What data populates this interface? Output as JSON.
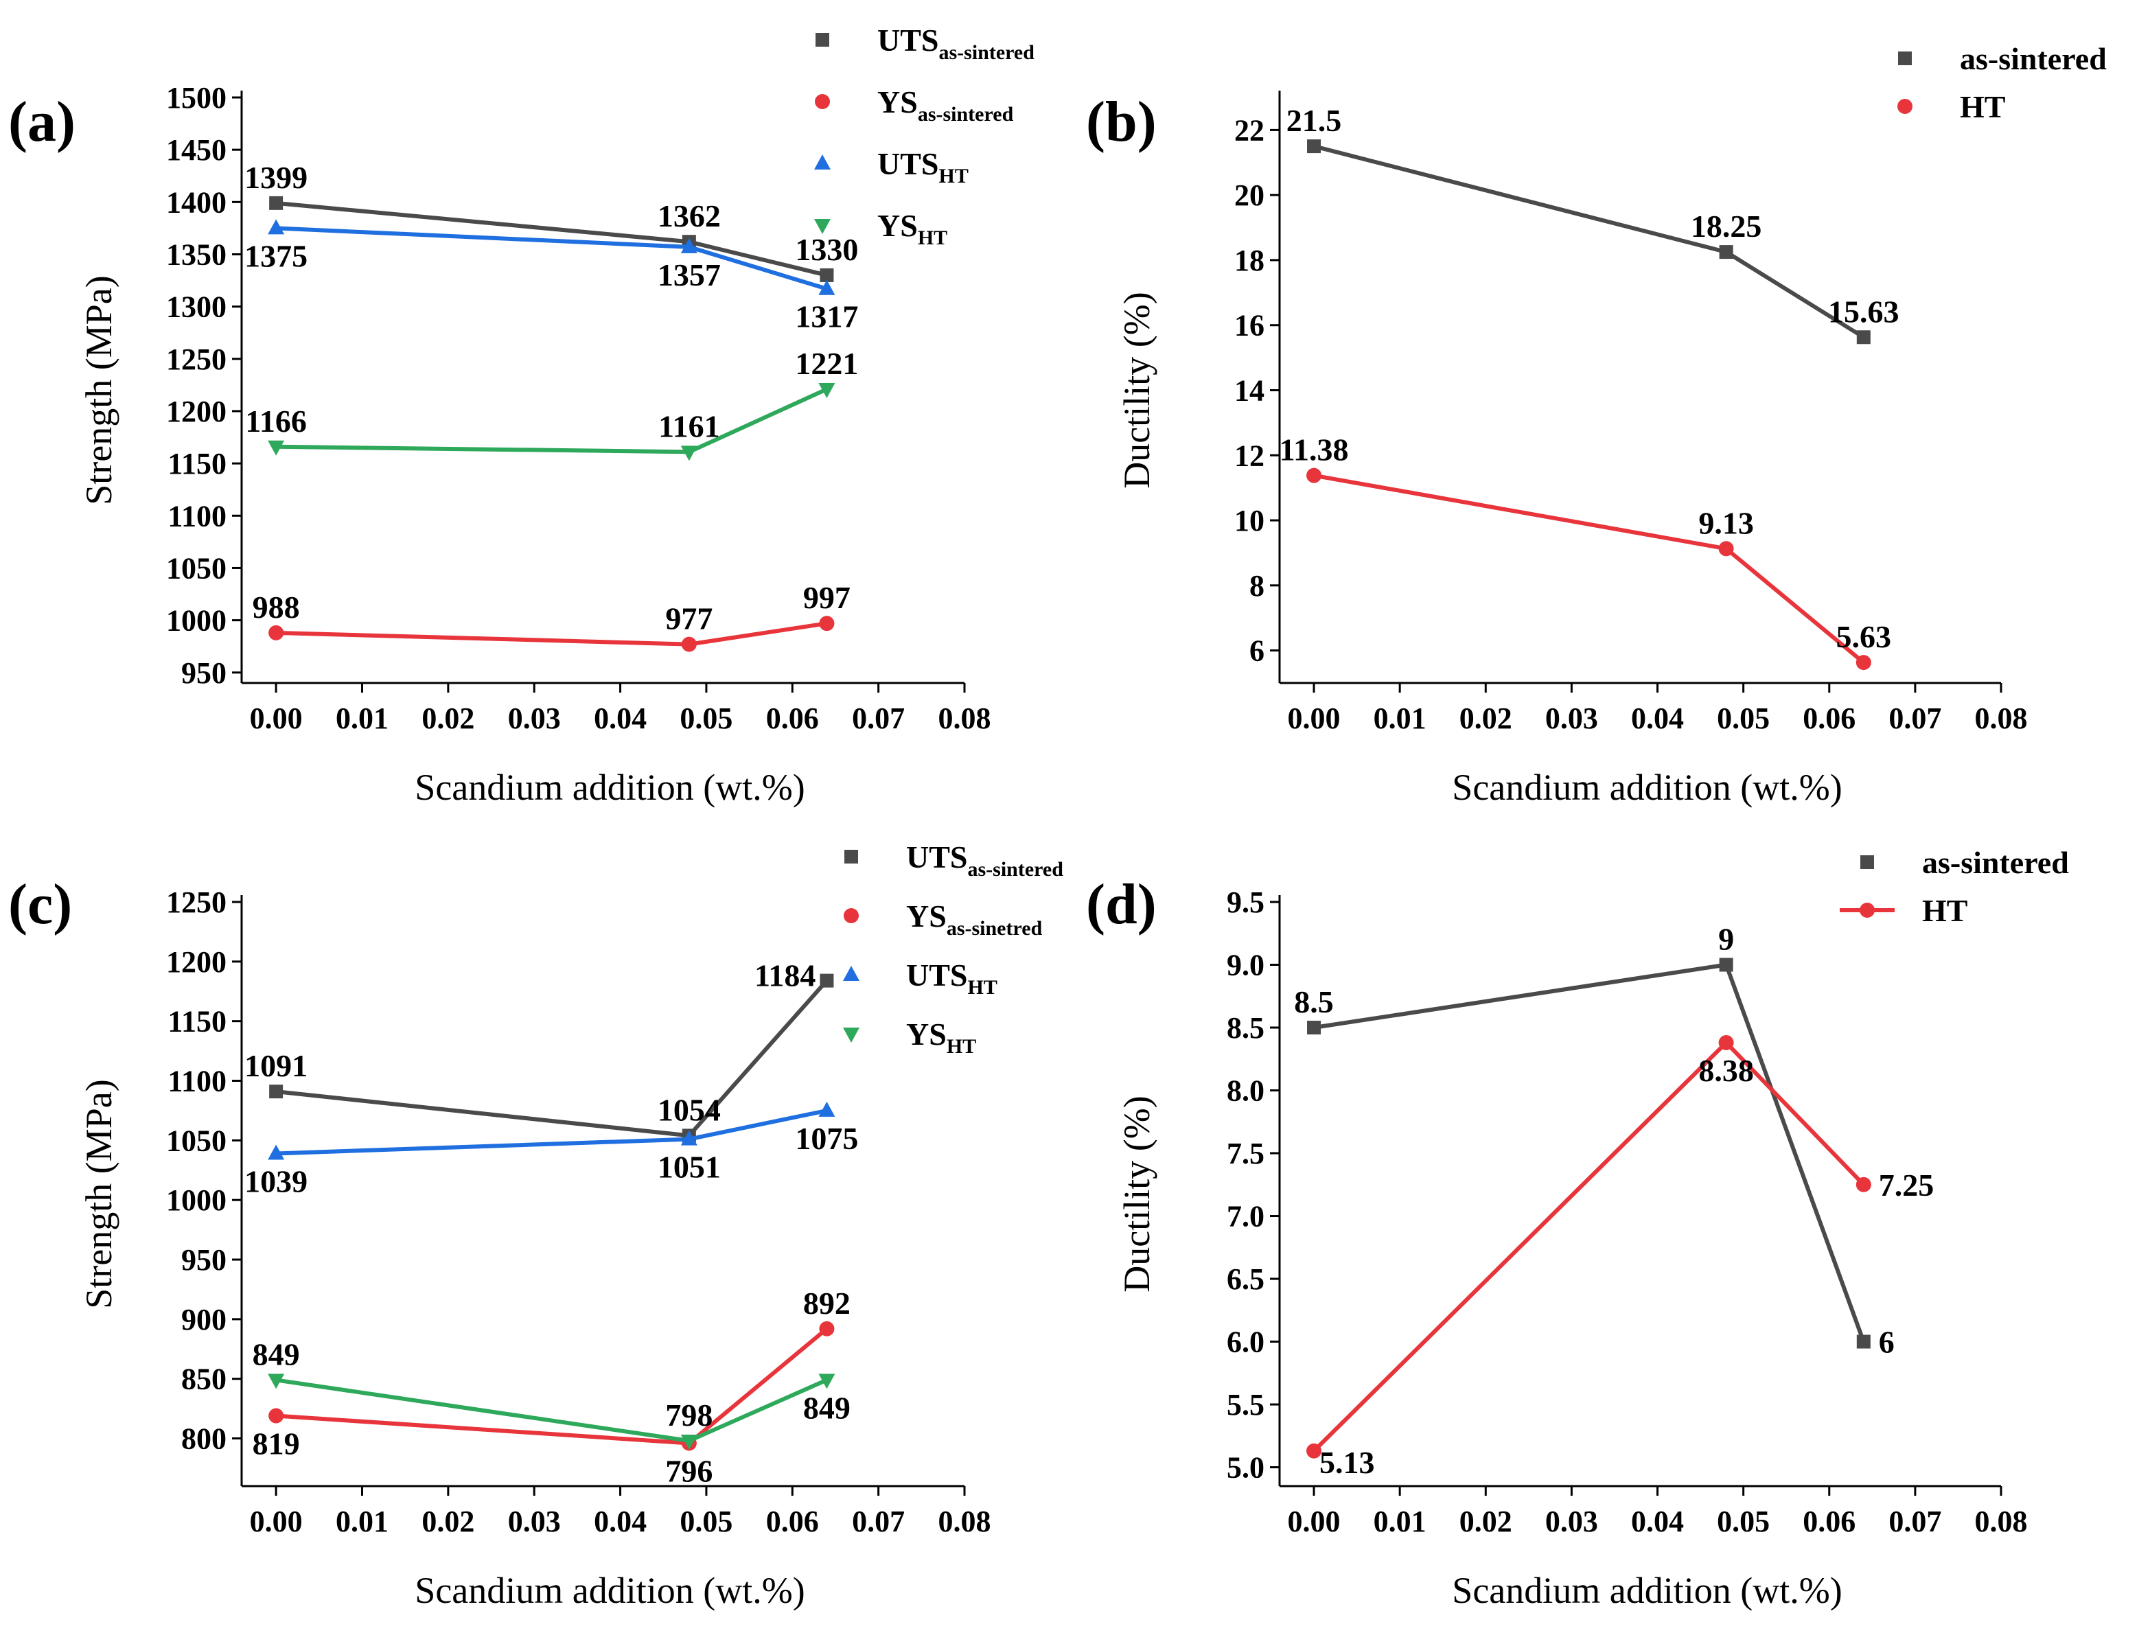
{
  "figure": {
    "panels": [
      {
        "id": "a",
        "label": "(a)",
        "chart_data": {
          "type": "line",
          "title": "",
          "xlabel": "Scandium addition (wt.%)",
          "ylabel": "Strength (MPa)",
          "xlim": [
            -0.004,
            0.08
          ],
          "ylim": [
            940,
            1500
          ],
          "xticks": [
            0.0,
            0.01,
            0.02,
            0.03,
            0.04,
            0.05,
            0.06,
            0.07,
            0.08
          ],
          "xtick_labels": [
            "0.00",
            "0.01",
            "0.02",
            "0.03",
            "0.04",
            "0.05",
            "0.06",
            "0.07",
            "0.08"
          ],
          "yticks": [
            950,
            1000,
            1050,
            1100,
            1150,
            1200,
            1250,
            1300,
            1350,
            1400,
            1450,
            1500
          ],
          "legend_position": "top-right",
          "x": [
            0.0,
            0.048,
            0.064
          ],
          "series": [
            {
              "name": "UTS",
              "subscript": "as-sintered",
              "color": "#4a4a4a",
              "marker": "square",
              "values": [
                1399,
                1362,
                1330
              ],
              "labels": [
                "1399",
                "1362",
                "1330"
              ],
              "label_pos": [
                "above",
                "above",
                "above"
              ]
            },
            {
              "name": "YS",
              "subscript": "as-sintered",
              "color": "#e8343b",
              "marker": "circle",
              "values": [
                988,
                977,
                997
              ],
              "labels": [
                "988",
                "977",
                "997"
              ],
              "label_pos": [
                "above",
                "above",
                "above"
              ]
            },
            {
              "name": "UTS",
              "subscript": "HT",
              "color": "#1f6fe0",
              "marker": "triangle-up",
              "values": [
                1375,
                1357,
                1317
              ],
              "labels": [
                "1375",
                "1357",
                "1317"
              ],
              "label_pos": [
                "below",
                "below",
                "below"
              ]
            },
            {
              "name": "YS",
              "subscript": "HT",
              "color": "#2ea85a",
              "marker": "triangle-down",
              "values": [
                1166,
                1161,
                1221
              ],
              "labels": [
                "1166",
                "1161",
                "1221"
              ],
              "label_pos": [
                "above",
                "above",
                "above"
              ]
            }
          ]
        }
      },
      {
        "id": "b",
        "label": "(b)",
        "chart_data": {
          "type": "line",
          "title": "",
          "xlabel": "Scandium addition (wt.%)",
          "ylabel": "Ductility (%)",
          "xlim": [
            -0.004,
            0.08
          ],
          "ylim": [
            5,
            23
          ],
          "xticks": [
            0.0,
            0.01,
            0.02,
            0.03,
            0.04,
            0.05,
            0.06,
            0.07,
            0.08
          ],
          "xtick_labels": [
            "0.00",
            "0.01",
            "0.02",
            "0.03",
            "0.04",
            "0.05",
            "0.06",
            "0.07",
            "0.08"
          ],
          "yticks": [
            6,
            8,
            10,
            12,
            14,
            16,
            18,
            20,
            22
          ],
          "legend_position": "top-right",
          "x": [
            0.0,
            0.048,
            0.064
          ],
          "series": [
            {
              "name": "as-sintered",
              "subscript": "",
              "color": "#4a4a4a",
              "marker": "square",
              "values": [
                21.5,
                18.25,
                15.63
              ],
              "labels": [
                "21.5",
                "18.25",
                "15.63"
              ],
              "label_pos": [
                "above",
                "above",
                "above"
              ]
            },
            {
              "name": "HT",
              "subscript": "",
              "color": "#e8343b",
              "marker": "circle",
              "values": [
                11.38,
                9.13,
                5.63
              ],
              "labels": [
                "11.38",
                "9.13",
                "5.63"
              ],
              "label_pos": [
                "above",
                "above",
                "above"
              ]
            }
          ]
        }
      },
      {
        "id": "c",
        "label": "(c)",
        "chart_data": {
          "type": "line",
          "title": "",
          "xlabel": "Scandium addition (wt.%)",
          "ylabel": "Strength (MPa)",
          "xlim": [
            -0.004,
            0.08
          ],
          "ylim": [
            760,
            1250
          ],
          "xticks": [
            0.0,
            0.01,
            0.02,
            0.03,
            0.04,
            0.05,
            0.06,
            0.07,
            0.08
          ],
          "xtick_labels": [
            "0.00",
            "0.01",
            "0.02",
            "0.03",
            "0.04",
            "0.05",
            "0.06",
            "0.07",
            "0.08"
          ],
          "yticks": [
            800,
            850,
            900,
            950,
            1000,
            1050,
            1100,
            1150,
            1200,
            1250
          ],
          "legend_position": "top-right",
          "x": [
            0.0,
            0.048,
            0.064
          ],
          "series": [
            {
              "name": "UTS",
              "subscript": "as-sintered",
              "color": "#4a4a4a",
              "marker": "square",
              "values": [
                1091,
                1054,
                1184
              ],
              "labels": [
                "1091",
                "1054",
                "1184"
              ],
              "label_pos": [
                "above",
                "above",
                "left"
              ]
            },
            {
              "name": "YS",
              "subscript": "as-sinetred",
              "color": "#e8343b",
              "marker": "circle",
              "values": [
                819,
                796,
                892
              ],
              "labels": [
                "819",
                "796",
                "892"
              ],
              "label_pos": [
                "below",
                "below",
                "above"
              ]
            },
            {
              "name": "UTS",
              "subscript": "HT",
              "color": "#1f6fe0",
              "marker": "triangle-up",
              "values": [
                1039,
                1051,
                1075
              ],
              "labels": [
                "1039",
                "1051",
                "1075"
              ],
              "label_pos": [
                "below",
                "below",
                "below"
              ]
            },
            {
              "name": "YS",
              "subscript": "HT",
              "color": "#2ea85a",
              "marker": "triangle-down",
              "values": [
                849,
                798,
                849
              ],
              "labels": [
                "849",
                "798",
                "849"
              ],
              "label_pos": [
                "above",
                "above",
                "below"
              ]
            }
          ]
        }
      },
      {
        "id": "d",
        "label": "(d)",
        "chart_data": {
          "type": "line",
          "title": "",
          "xlabel": "Scandium addition (wt.%)",
          "ylabel": "Ductility (%)",
          "xlim": [
            -0.004,
            0.08
          ],
          "ylim": [
            4.85,
            9.5
          ],
          "xticks": [
            0.0,
            0.01,
            0.02,
            0.03,
            0.04,
            0.05,
            0.06,
            0.07,
            0.08
          ],
          "xtick_labels": [
            "0.00",
            "0.01",
            "0.02",
            "0.03",
            "0.04",
            "0.05",
            "0.06",
            "0.07",
            "0.08"
          ],
          "yticks": [
            5.0,
            5.5,
            6.0,
            6.5,
            7.0,
            7.5,
            8.0,
            8.5,
            9.0,
            9.5
          ],
          "ytick_labels": [
            "5.0",
            "5.5",
            "6.0",
            "6.5",
            "7.0",
            "7.5",
            "8.0",
            "8.5",
            "9.0",
            "9.5"
          ],
          "legend_position": "top-right",
          "x": [
            0.0,
            0.048,
            0.064
          ],
          "series": [
            {
              "name": "as-sintered",
              "subscript": "",
              "color": "#4a4a4a",
              "marker": "square",
              "values": [
                8.5,
                9.0,
                6.0
              ],
              "labels": [
                "8.5",
                "9",
                "6"
              ],
              "label_pos": [
                "above",
                "above",
                "right"
              ]
            },
            {
              "name": "HT",
              "subscript": "",
              "color": "#e8343b",
              "marker": "circle",
              "values": [
                5.13,
                8.38,
                7.25
              ],
              "labels": [
                "5.13",
                "8.38",
                "7.25"
              ],
              "label_pos": [
                "right-below",
                "below",
                "right"
              ]
            }
          ]
        }
      }
    ]
  }
}
